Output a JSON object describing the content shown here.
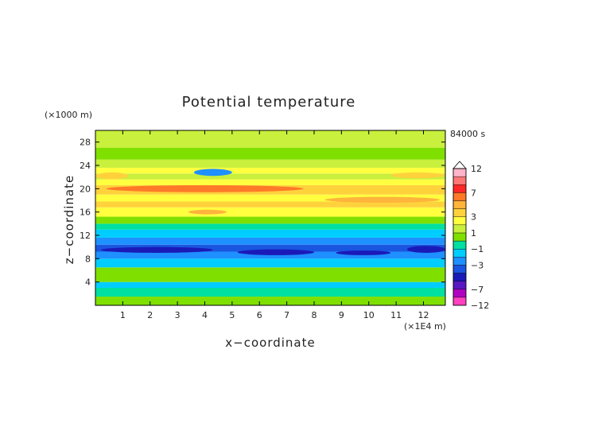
{
  "chart_data": {
    "type": "heatmap",
    "title": "Potential temperature",
    "xlabel": "x−coordinate",
    "ylabel": "z−coordinate",
    "x_unit": "(×1E4 m)",
    "y_unit": "(×1000 m)",
    "time_label": "84000 s",
    "xlim": [
      0,
      12.8
    ],
    "ylim": [
      0,
      30
    ],
    "x_ticks": [
      1,
      2,
      3,
      4,
      5,
      6,
      7,
      8,
      9,
      10,
      11,
      12
    ],
    "y_ticks": [
      4,
      8,
      12,
      16,
      20,
      24,
      28
    ],
    "colorbar": {
      "tick_labels": [
        "12",
        "7",
        "3",
        "1",
        "−1",
        "−3",
        "−7",
        "−12"
      ],
      "tick_values": [
        12,
        7,
        3,
        1,
        -1,
        -3,
        -7,
        -12
      ],
      "levels": [
        -12,
        -9,
        -7,
        -5,
        -4,
        -3,
        -2,
        -1,
        0,
        1,
        2,
        3,
        4,
        5,
        7,
        9,
        12
      ],
      "colors": [
        "#ff40c0",
        "#b000c0",
        "#5a18c0",
        "#1a1ab8",
        "#1a55e0",
        "#1e90ff",
        "#00cdff",
        "#00e0a0",
        "#7fe000",
        "#c8f03c",
        "#ffff40",
        "#ffd23c",
        "#ffb43c",
        "#ff7a28",
        "#ff2828",
        "#ff7878",
        "#ffb4c8"
      ],
      "extend": "max"
    },
    "layers": [
      {
        "z": [
          0,
          1.5
        ],
        "value": 0.5
      },
      {
        "z": [
          1.5,
          3.0
        ],
        "value": -0.5
      },
      {
        "z": [
          3.0,
          4.0
        ],
        "value": -1.5
      },
      {
        "z": [
          4.0,
          6.5
        ],
        "value": 0.5
      },
      {
        "z": [
          6.5,
          8.0
        ],
        "value": -1.5
      },
      {
        "z": [
          8.0,
          9.2
        ],
        "value": -2.5
      },
      {
        "z": [
          9.2,
          10.4
        ],
        "value": -4.0
      },
      {
        "z": [
          10.4,
          11.6
        ],
        "value": -2.5
      },
      {
        "z": [
          11.6,
          13.0
        ],
        "value": -1.5
      },
      {
        "z": [
          13.0,
          14.0
        ],
        "value": -0.5
      },
      {
        "z": [
          14.0,
          15.2
        ],
        "value": 0.5
      },
      {
        "z": [
          15.2,
          16.8
        ],
        "value": 2.5
      },
      {
        "z": [
          16.8,
          17.8
        ],
        "value": 3.5
      },
      {
        "z": [
          17.8,
          19.0
        ],
        "value": 2.5
      },
      {
        "z": [
          19.0,
          20.6
        ],
        "value": 3.5
      },
      {
        "z": [
          20.6,
          21.6
        ],
        "value": 2.5
      },
      {
        "z": [
          21.6,
          22.6
        ],
        "value": 1.5
      },
      {
        "z": [
          22.6,
          23.6
        ],
        "value": 2.5
      },
      {
        "z": [
          23.6,
          25.0
        ],
        "value": 1.5
      },
      {
        "z": [
          25.0,
          27.0
        ],
        "value": 0.5
      },
      {
        "z": [
          27.0,
          30.0
        ],
        "value": 1.5
      }
    ],
    "features": [
      {
        "x": [
          0.2,
          4.3
        ],
        "z": [
          9.0,
          10.0
        ],
        "value": -5
      },
      {
        "x": [
          5.2,
          8.0
        ],
        "z": [
          8.6,
          9.6
        ],
        "value": -5
      },
      {
        "x": [
          8.8,
          10.8
        ],
        "z": [
          8.6,
          9.4
        ],
        "value": -5
      },
      {
        "x": [
          11.4,
          12.8
        ],
        "z": [
          9.0,
          10.2
        ],
        "value": -5
      },
      {
        "x": [
          3.6,
          5.0
        ],
        "z": [
          22.2,
          23.4
        ],
        "value": -3
      },
      {
        "x": [
          0.4,
          7.6
        ],
        "z": [
          19.4,
          20.6
        ],
        "value": 5
      },
      {
        "x": [
          8.4,
          12.6
        ],
        "z": [
          17.6,
          18.6
        ],
        "value": 4
      },
      {
        "x": [
          3.4,
          4.8
        ],
        "z": [
          15.6,
          16.4
        ],
        "value": 4
      },
      {
        "x": [
          0.0,
          1.2
        ],
        "z": [
          21.6,
          22.8
        ],
        "value": 3
      },
      {
        "x": [
          10.8,
          12.8
        ],
        "z": [
          21.8,
          22.8
        ],
        "value": 3
      }
    ]
  }
}
